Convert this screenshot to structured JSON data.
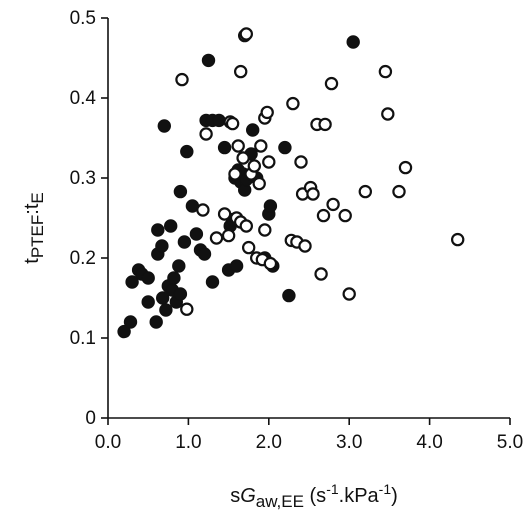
{
  "chart_data": {
    "type": "scatter",
    "xlabel": {
      "main": "sG",
      "main_italic": "G",
      "sub": "aw,EE",
      "unit_prefix": " (s",
      "exp1": "-1",
      "unit_mid": ".kPa",
      "exp2": "-1",
      "unit_suffix": ")"
    },
    "ylabel": {
      "main": "t",
      "sub1": "PTEF",
      "sep": ":t",
      "sub2": "E"
    },
    "xlim": [
      0,
      5.0
    ],
    "ylim": [
      0,
      0.5
    ],
    "x_ticks": [
      "0.0",
      "1.0",
      "2.0",
      "3.0",
      "4.0",
      "5.0"
    ],
    "y_ticks": [
      "0",
      "0.1",
      "0.2",
      "0.3",
      "0.4",
      "0.5"
    ],
    "x_tick_values": [
      0,
      1,
      2,
      3,
      4,
      5
    ],
    "y_tick_values": [
      0,
      0.1,
      0.2,
      0.3,
      0.4,
      0.5
    ],
    "grid": false,
    "legend": "none",
    "series": [
      {
        "marker": "filled-circle",
        "color": "#111111",
        "points": [
          [
            0.2,
            0.108
          ],
          [
            0.28,
            0.12
          ],
          [
            0.3,
            0.17
          ],
          [
            0.38,
            0.185
          ],
          [
            0.42,
            0.18
          ],
          [
            0.5,
            0.175
          ],
          [
            0.5,
            0.145
          ],
          [
            0.6,
            0.12
          ],
          [
            0.62,
            0.235
          ],
          [
            0.62,
            0.205
          ],
          [
            0.67,
            0.215
          ],
          [
            0.68,
            0.15
          ],
          [
            0.7,
            0.365
          ],
          [
            0.72,
            0.135
          ],
          [
            0.75,
            0.165
          ],
          [
            0.78,
            0.24
          ],
          [
            0.8,
            0.16
          ],
          [
            0.82,
            0.175
          ],
          [
            0.85,
            0.145
          ],
          [
            0.88,
            0.19
          ],
          [
            0.9,
            0.155
          ],
          [
            0.9,
            0.283
          ],
          [
            0.95,
            0.22
          ],
          [
            0.98,
            0.333
          ],
          [
            1.05,
            0.265
          ],
          [
            1.1,
            0.23
          ],
          [
            1.15,
            0.21
          ],
          [
            1.2,
            0.205
          ],
          [
            1.22,
            0.372
          ],
          [
            1.25,
            0.447
          ],
          [
            1.3,
            0.17
          ],
          [
            1.3,
            0.372
          ],
          [
            1.38,
            0.372
          ],
          [
            1.45,
            0.338
          ],
          [
            1.5,
            0.185
          ],
          [
            1.52,
            0.24
          ],
          [
            1.55,
            0.248
          ],
          [
            1.58,
            0.3
          ],
          [
            1.6,
            0.19
          ],
          [
            1.62,
            0.31
          ],
          [
            1.65,
            0.295
          ],
          [
            1.68,
            0.305
          ],
          [
            1.7,
            0.285
          ],
          [
            1.72,
            0.298
          ],
          [
            1.78,
            0.33
          ],
          [
            1.8,
            0.36
          ],
          [
            1.85,
            0.3
          ],
          [
            1.95,
            0.2
          ],
          [
            2.0,
            0.255
          ],
          [
            2.02,
            0.265
          ],
          [
            2.05,
            0.19
          ],
          [
            2.2,
            0.338
          ],
          [
            2.25,
            0.153
          ],
          [
            3.05,
            0.47
          ]
        ]
      },
      {
        "marker": "open-circle",
        "color": "#111111",
        "points": [
          [
            0.92,
            0.423
          ],
          [
            0.98,
            0.136
          ],
          [
            1.18,
            0.26
          ],
          [
            1.22,
            0.355
          ],
          [
            1.35,
            0.225
          ],
          [
            1.45,
            0.255
          ],
          [
            1.5,
            0.228
          ],
          [
            1.52,
            0.37
          ],
          [
            1.55,
            0.368
          ],
          [
            1.58,
            0.305
          ],
          [
            1.6,
            0.25
          ],
          [
            1.62,
            0.34
          ],
          [
            1.65,
            0.433
          ],
          [
            1.65,
            0.245
          ],
          [
            1.68,
            0.325
          ],
          [
            1.7,
            0.478
          ],
          [
            1.72,
            0.48
          ],
          [
            1.72,
            0.24
          ],
          [
            1.75,
            0.213
          ],
          [
            1.78,
            0.305
          ],
          [
            1.82,
            0.315
          ],
          [
            1.85,
            0.2
          ],
          [
            1.88,
            0.293
          ],
          [
            1.9,
            0.34
          ],
          [
            1.92,
            0.198
          ],
          [
            1.95,
            0.375
          ],
          [
            1.95,
            0.235
          ],
          [
            1.98,
            0.382
          ],
          [
            2.0,
            0.32
          ],
          [
            2.02,
            0.193
          ],
          [
            2.28,
            0.222
          ],
          [
            2.3,
            0.393
          ],
          [
            2.35,
            0.22
          ],
          [
            2.4,
            0.32
          ],
          [
            2.45,
            0.215
          ],
          [
            2.42,
            0.28
          ],
          [
            2.52,
            0.288
          ],
          [
            2.55,
            0.28
          ],
          [
            2.6,
            0.367
          ],
          [
            2.65,
            0.18
          ],
          [
            2.68,
            0.253
          ],
          [
            2.7,
            0.367
          ],
          [
            2.78,
            0.418
          ],
          [
            2.8,
            0.267
          ],
          [
            2.95,
            0.253
          ],
          [
            3.0,
            0.155
          ],
          [
            3.2,
            0.283
          ],
          [
            3.45,
            0.433
          ],
          [
            3.48,
            0.38
          ],
          [
            3.62,
            0.283
          ],
          [
            3.7,
            0.313
          ],
          [
            4.35,
            0.223
          ]
        ]
      }
    ]
  }
}
